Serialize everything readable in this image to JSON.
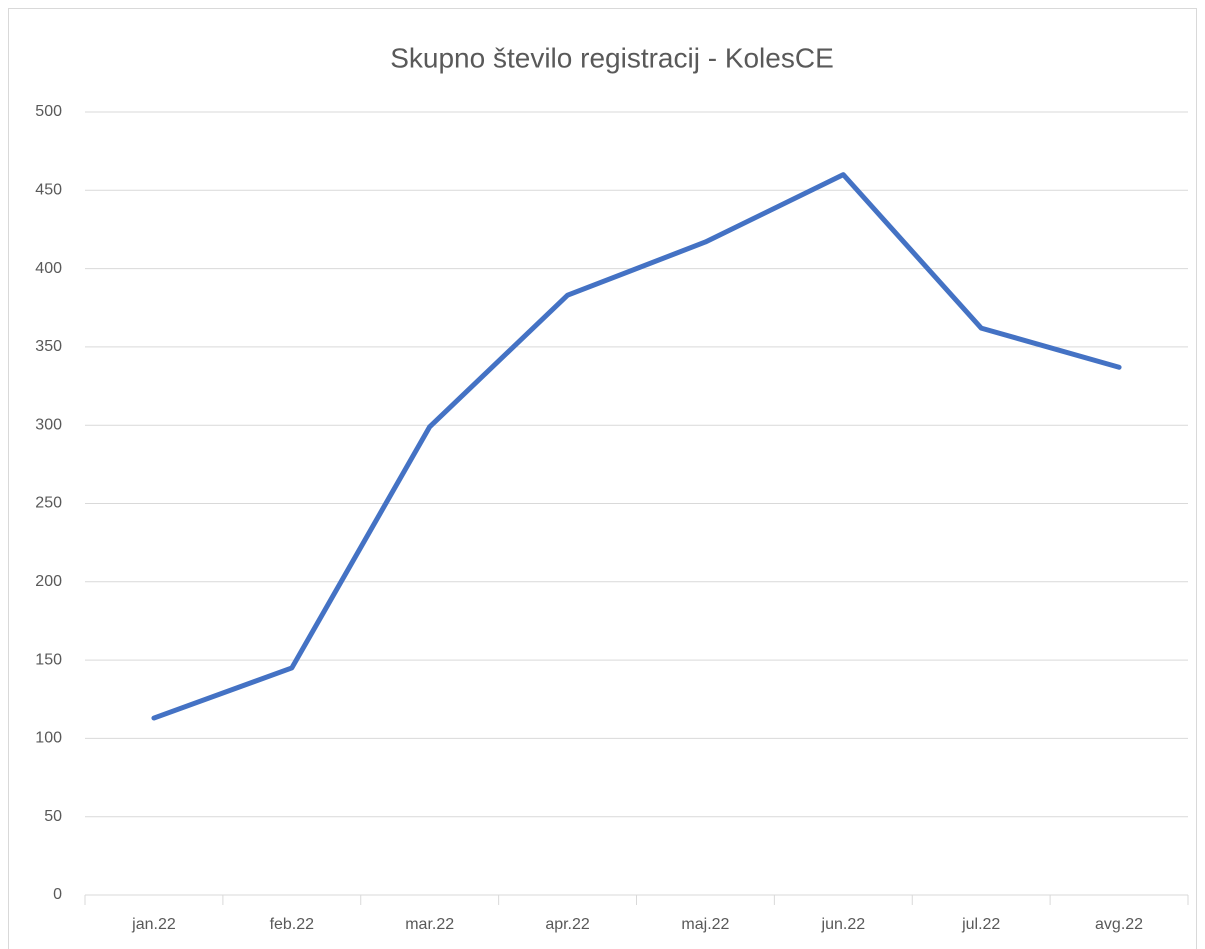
{
  "chart_data": {
    "type": "line",
    "title": "Skupno število registracij - KolesCE",
    "categories": [
      "jan.22",
      "feb.22",
      "mar.22",
      "apr.22",
      "maj.22",
      "jun.22",
      "jul.22",
      "avg.22"
    ],
    "series": [
      {
        "name": "Skupno število registracij",
        "color": "#4472c4",
        "values": [
          113,
          145,
          299,
          383,
          417,
          460,
          362,
          337
        ]
      }
    ],
    "ylim": [
      0,
      500
    ],
    "yticks": [
      0,
      50,
      100,
      150,
      200,
      250,
      300,
      350,
      400,
      450,
      500
    ],
    "grid": true
  }
}
